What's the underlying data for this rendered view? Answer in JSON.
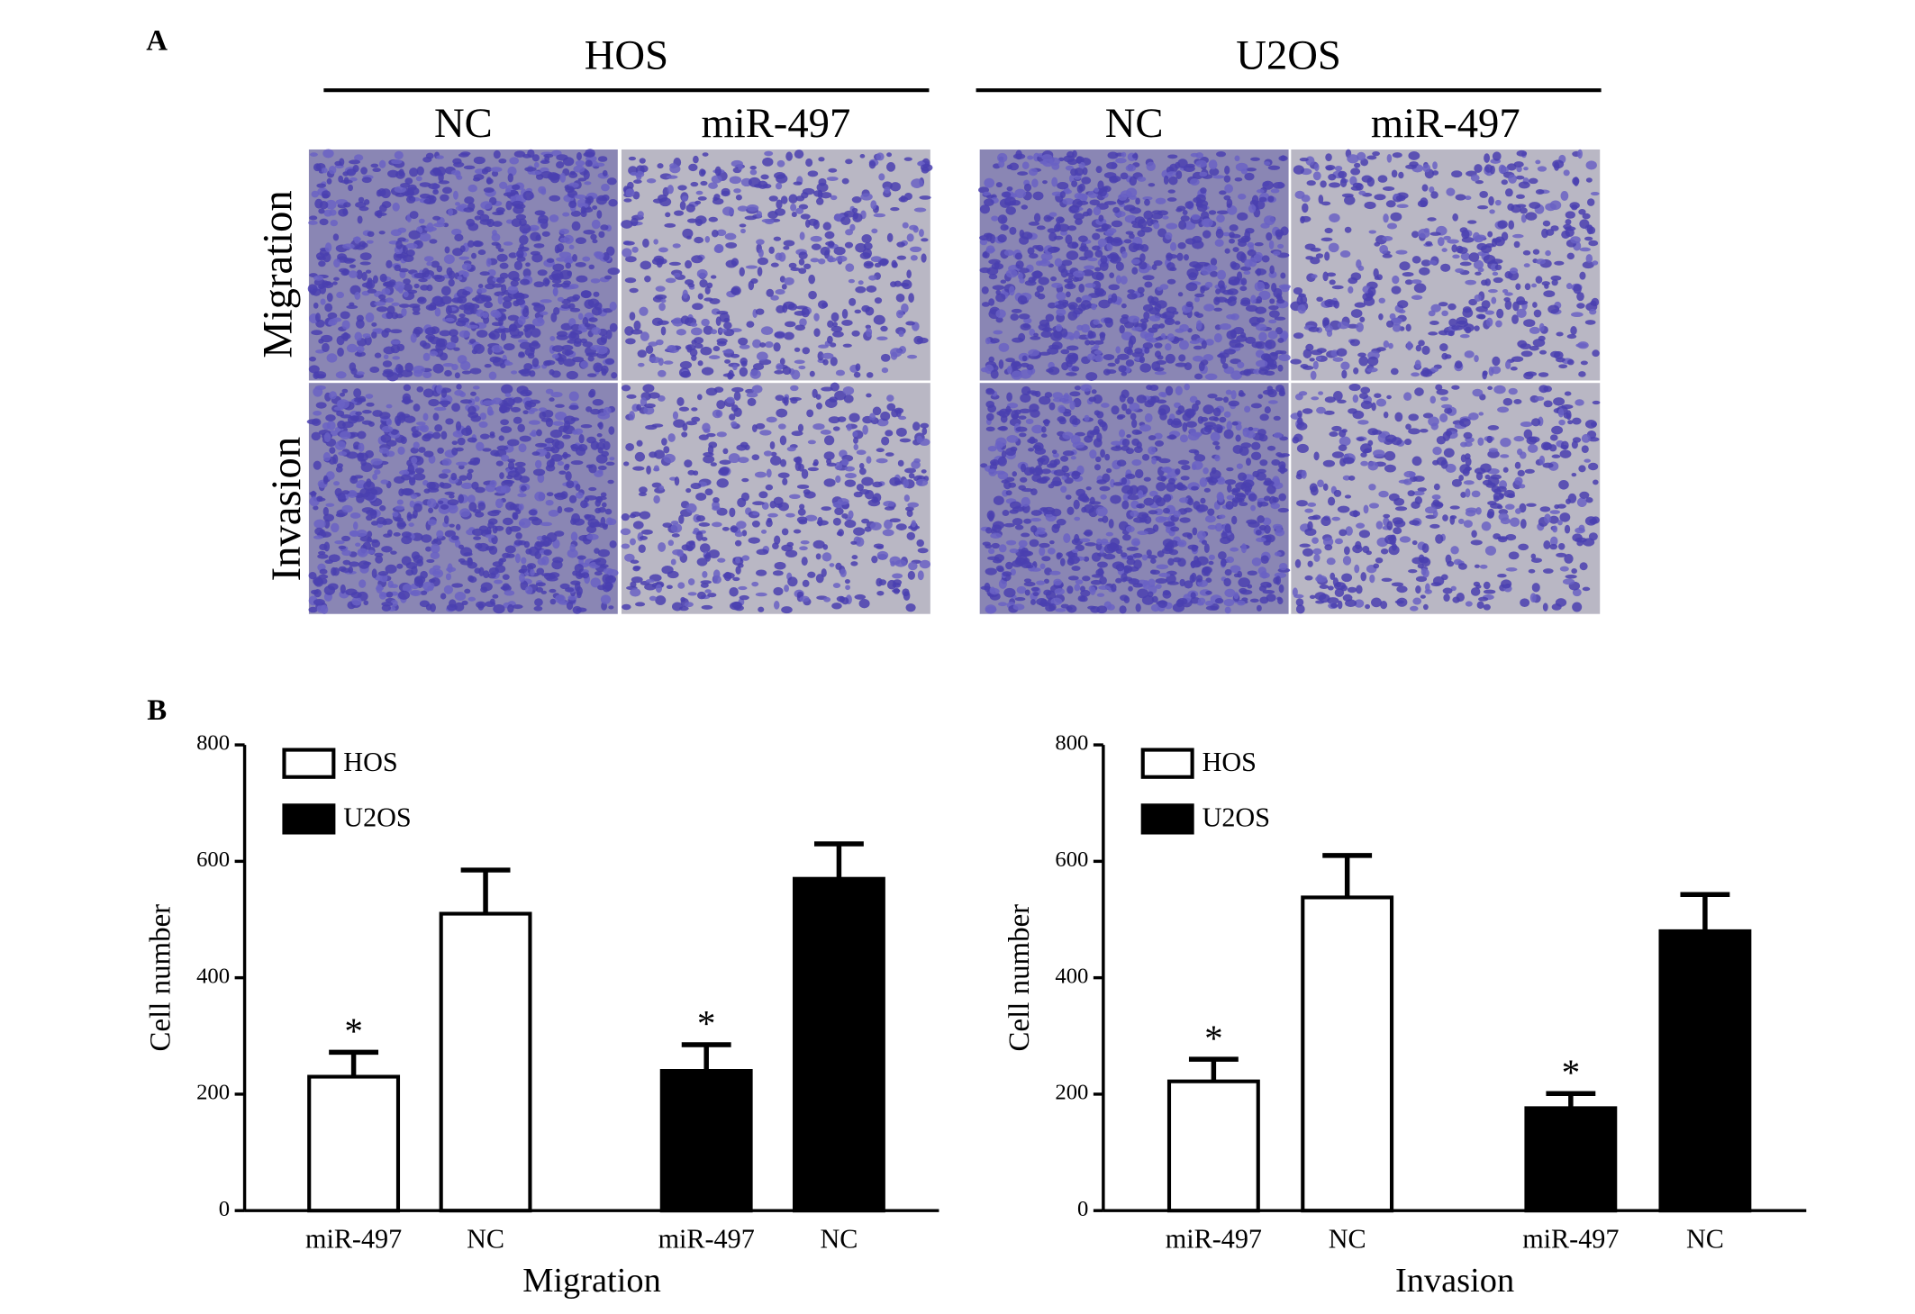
{
  "panel_a": {
    "label": "A",
    "groups": [
      {
        "name": "HOS",
        "columns": [
          "NC",
          "miR-497"
        ]
      },
      {
        "name": "U2OS",
        "columns": [
          "NC",
          "miR-497"
        ]
      }
    ],
    "rows": [
      "Migration",
      "Invasion"
    ]
  },
  "panel_b": {
    "label": "B"
  },
  "chart_data": [
    {
      "type": "bar",
      "xlabel": "Migration",
      "ylabel": "Cell number",
      "categories": [
        "miR-497",
        "NC",
        "miR-497",
        "NC"
      ],
      "series": [
        {
          "name": "HOS",
          "color": "#ffffff",
          "values": [
            230,
            510,
            null,
            null
          ],
          "errors": [
            42,
            75,
            null,
            null
          ]
        },
        {
          "name": "U2OS",
          "color": "#000000",
          "values": [
            null,
            null,
            240,
            570
          ],
          "errors": [
            null,
            null,
            45,
            60
          ]
        }
      ],
      "annotations": [
        {
          "text": "*",
          "series": 0,
          "index": 0
        },
        {
          "text": "*",
          "series": 1,
          "index": 2
        }
      ],
      "ylim": [
        0,
        800
      ],
      "yticks": [
        0,
        200,
        400,
        600,
        800
      ],
      "legend": "upper left"
    },
    {
      "type": "bar",
      "xlabel": "Invasion",
      "ylabel": "Cell number",
      "categories": [
        "miR-497",
        "NC",
        "miR-497",
        "NC"
      ],
      "series": [
        {
          "name": "HOS",
          "color": "#ffffff",
          "values": [
            222,
            538,
            null,
            null
          ],
          "errors": [
            38,
            72,
            null,
            null
          ]
        },
        {
          "name": "U2OS",
          "color": "#000000",
          "values": [
            null,
            null,
            176,
            480
          ],
          "errors": [
            null,
            null,
            25,
            63
          ]
        }
      ],
      "annotations": [
        {
          "text": "*",
          "series": 0,
          "index": 0
        },
        {
          "text": "*",
          "series": 1,
          "index": 2
        }
      ],
      "ylim": [
        0,
        800
      ],
      "yticks": [
        0,
        200,
        400,
        600,
        800
      ],
      "legend": "upper left"
    }
  ]
}
